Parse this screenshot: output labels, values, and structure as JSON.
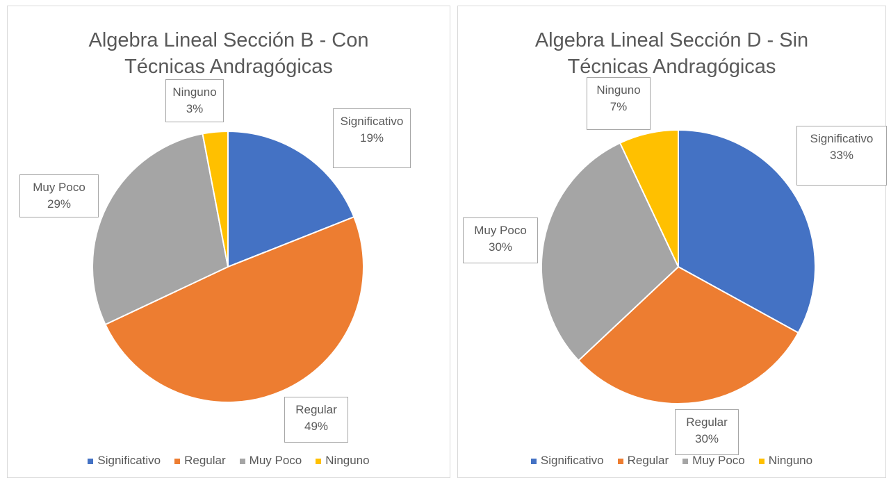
{
  "chart_data": [
    {
      "type": "pie",
      "title": "Algebra Lineal Sección B - Con Técnicas Andragógicas",
      "categories": [
        "Significativo",
        "Regular",
        "Muy Poco",
        "Ninguno"
      ],
      "values": [
        19,
        49,
        29,
        3
      ],
      "value_labels": [
        "19%",
        "49%",
        "29%",
        "3%"
      ],
      "colors": [
        "#4472c4",
        "#ed7d31",
        "#a5a5a5",
        "#ffc000"
      ],
      "legend": "bottom"
    },
    {
      "type": "pie",
      "title": "Algebra Lineal Sección D - Sin Técnicas Andragógicas",
      "categories": [
        "Significativo",
        "Regular",
        "Muy Poco",
        "Ninguno"
      ],
      "values": [
        33,
        30,
        30,
        7
      ],
      "value_labels": [
        "33%",
        "30%",
        "30%",
        "7%"
      ],
      "colors": [
        "#4472c4",
        "#ed7d31",
        "#a5a5a5",
        "#ffc000"
      ],
      "legend": "bottom"
    }
  ]
}
